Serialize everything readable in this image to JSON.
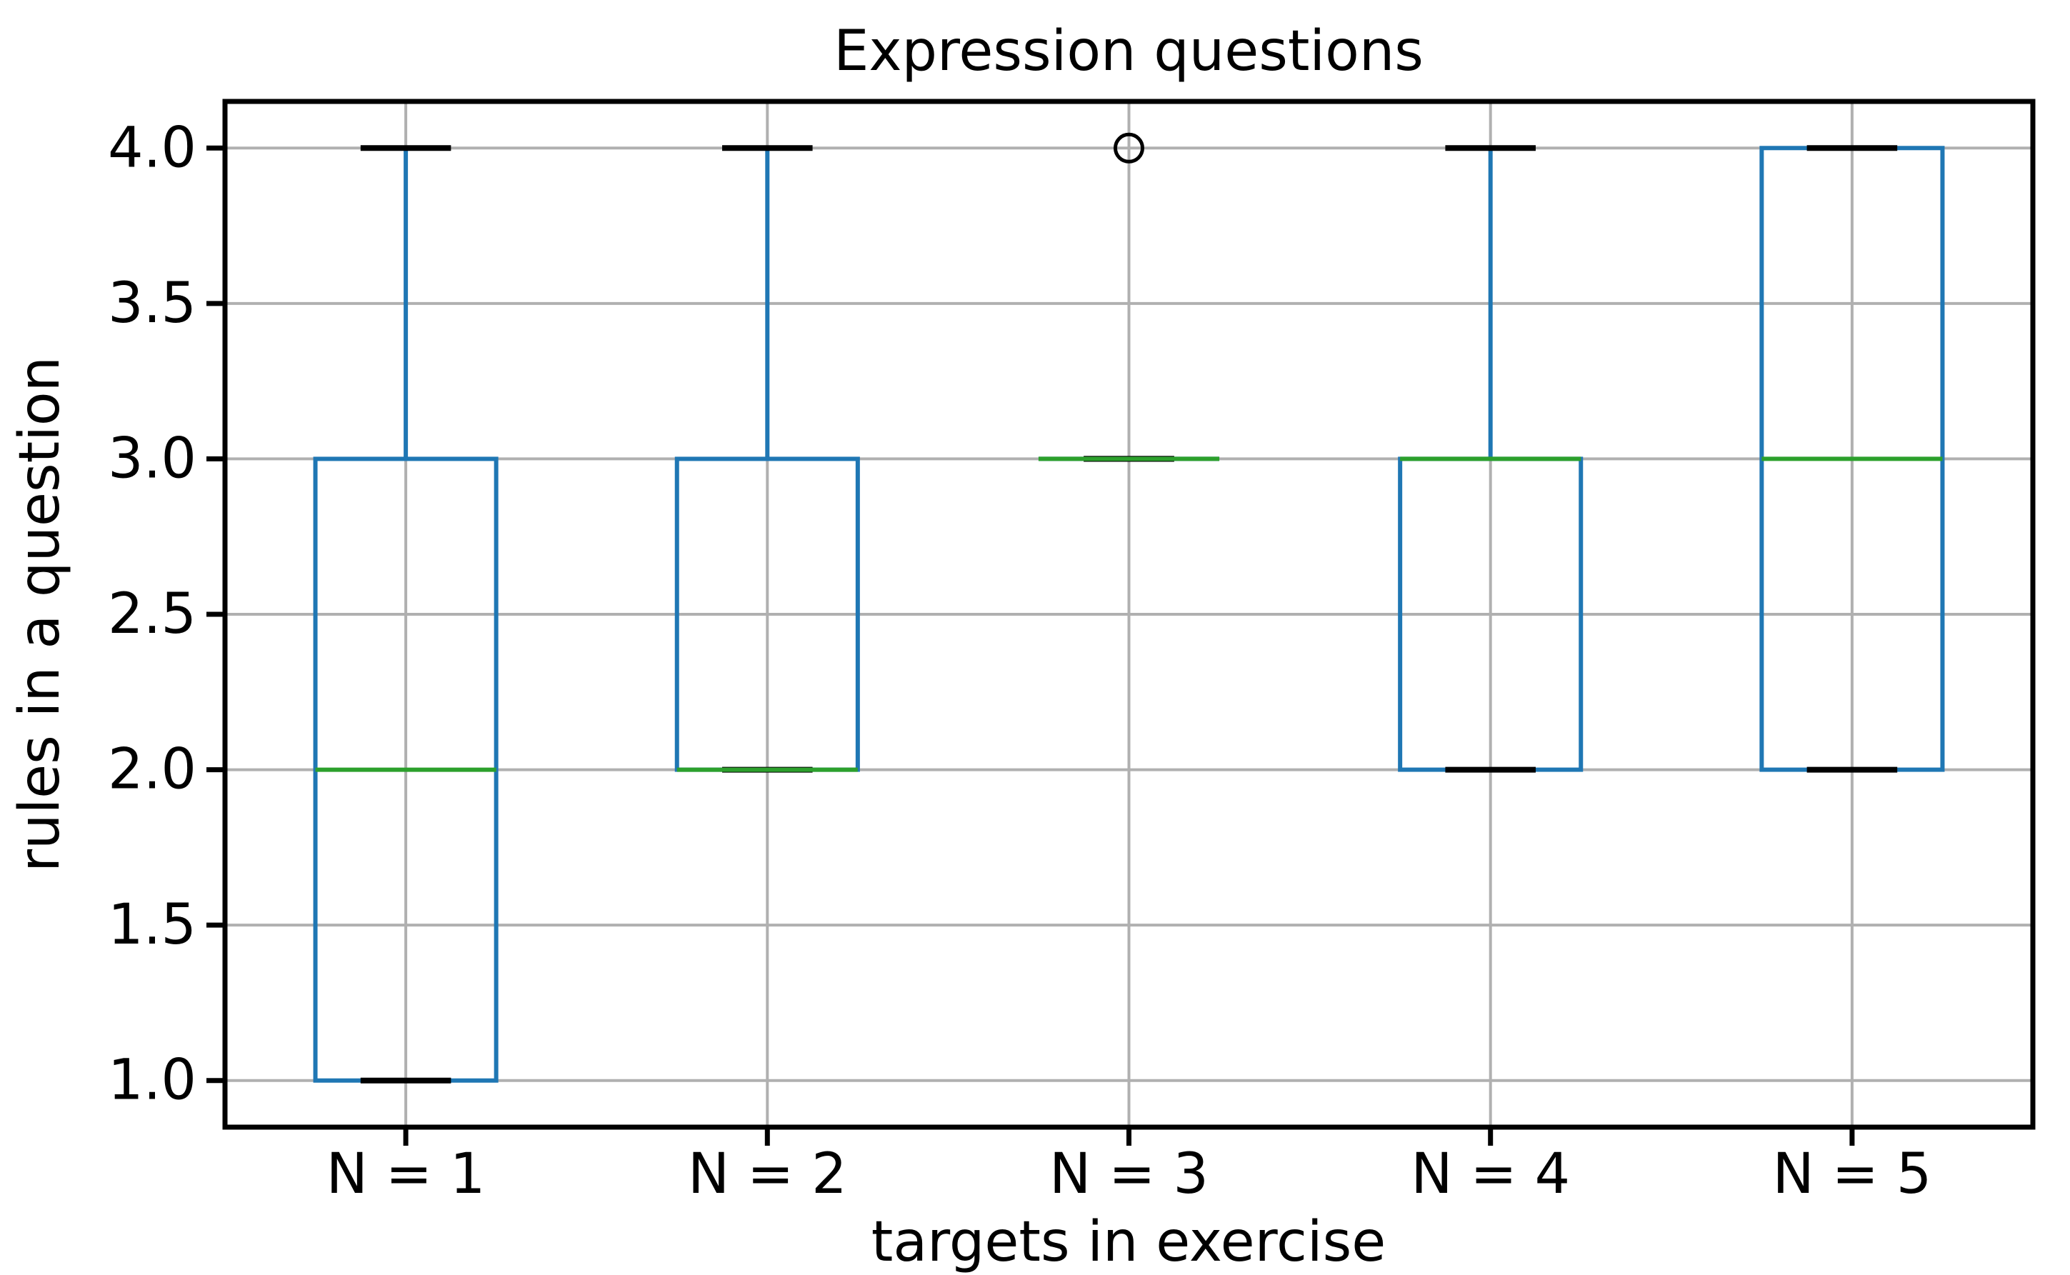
{
  "chart_data": {
    "type": "boxplot",
    "title": "Expression questions",
    "xlabel": "targets in exercise",
    "ylabel": "rules in a question",
    "categories": [
      "N = 1",
      "N = 2",
      "N = 3",
      "N = 4",
      "N = 5"
    ],
    "positions": [
      1,
      2,
      3,
      4,
      5
    ],
    "boxes": [
      {
        "category": "N = 1",
        "whislo": 1.0,
        "q1": 1.0,
        "med": 2.0,
        "q3": 3.0,
        "whishi": 4.0,
        "fliers": []
      },
      {
        "category": "N = 2",
        "whislo": 2.0,
        "q1": 2.0,
        "med": 2.0,
        "q3": 3.0,
        "whishi": 4.0,
        "fliers": []
      },
      {
        "category": "N = 3",
        "whislo": 3.0,
        "q1": 3.0,
        "med": 3.0,
        "q3": 3.0,
        "whishi": 3.0,
        "fliers": [
          4.0
        ]
      },
      {
        "category": "N = 4",
        "whislo": 2.0,
        "q1": 2.0,
        "med": 3.0,
        "q3": 3.0,
        "whishi": 4.0,
        "fliers": []
      },
      {
        "category": "N = 5",
        "whislo": 2.0,
        "q1": 2.0,
        "med": 3.0,
        "q3": 4.0,
        "whishi": 4.0,
        "fliers": []
      }
    ],
    "ytick_values": [
      1.0,
      1.5,
      2.0,
      2.5,
      3.0,
      3.5,
      4.0
    ],
    "ytick_labels": [
      "1.0",
      "1.5",
      "2.0",
      "2.5",
      "3.0",
      "3.5",
      "4.0"
    ],
    "ylim": [
      0.85,
      4.15
    ],
    "xlim": [
      0.5,
      5.5
    ],
    "grid": true,
    "box_width": 0.5,
    "cap_width": 0.25,
    "flier_marker": "circle",
    "colors": {
      "box": "#1f77b4",
      "whisker": "#1f77b4",
      "cap": "#000000",
      "median": "#2ca02c",
      "flier_edge": "#000000",
      "grid": "#b0b0b0",
      "spine": "#000000",
      "text": "#000000",
      "background": "#ffffff"
    }
  }
}
